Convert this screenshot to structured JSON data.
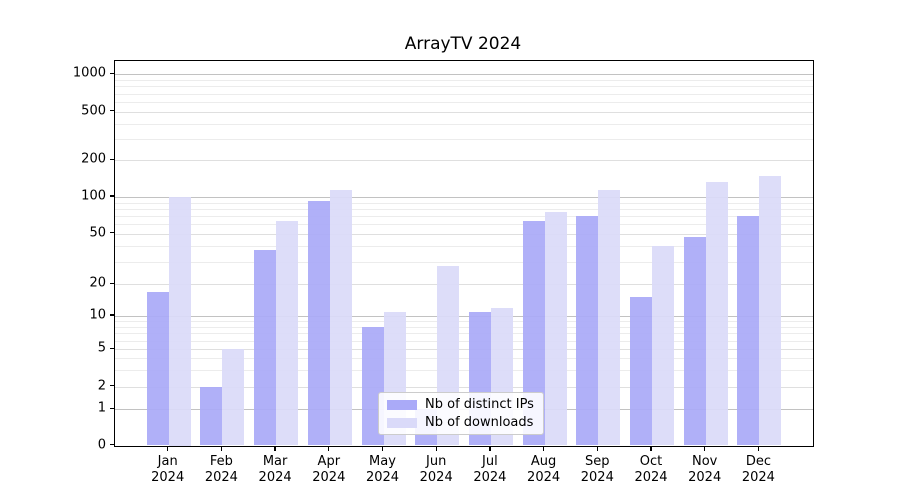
{
  "title": "ArrayTV 2024",
  "chart_data": {
    "type": "bar",
    "title": "ArrayTV 2024",
    "categories": [
      "Jan 2024",
      "Feb 2024",
      "Mar 2024",
      "Apr 2024",
      "May 2024",
      "Jun 2024",
      "Jul 2024",
      "Aug 2024",
      "Sep 2024",
      "Oct 2024",
      "Nov 2024",
      "Dec 2024"
    ],
    "series": [
      {
        "name": "Nb of distinct IPs",
        "color": "#aaaaf8",
        "values": [
          17,
          2,
          37,
          93,
          8,
          1,
          11,
          64,
          70,
          15,
          47,
          70
        ]
      },
      {
        "name": "Nb of downloads",
        "color": "#dadaf9",
        "values": [
          100,
          5,
          63,
          115,
          11,
          28,
          12,
          75,
          115,
          40,
          132,
          150
        ]
      }
    ],
    "yscale": "symlog",
    "yticks": [
      0,
      1,
      2,
      5,
      10,
      20,
      50,
      100,
      200,
      500,
      1000
    ],
    "ylim": [
      0,
      1100
    ],
    "xlabel": "",
    "ylabel": "",
    "grid": true,
    "legend_position": "lower center",
    "gridline_colors": {
      "major": "#c2c2c2",
      "labeled_minor": "#dfdfdf",
      "minor": "#ececec"
    }
  }
}
